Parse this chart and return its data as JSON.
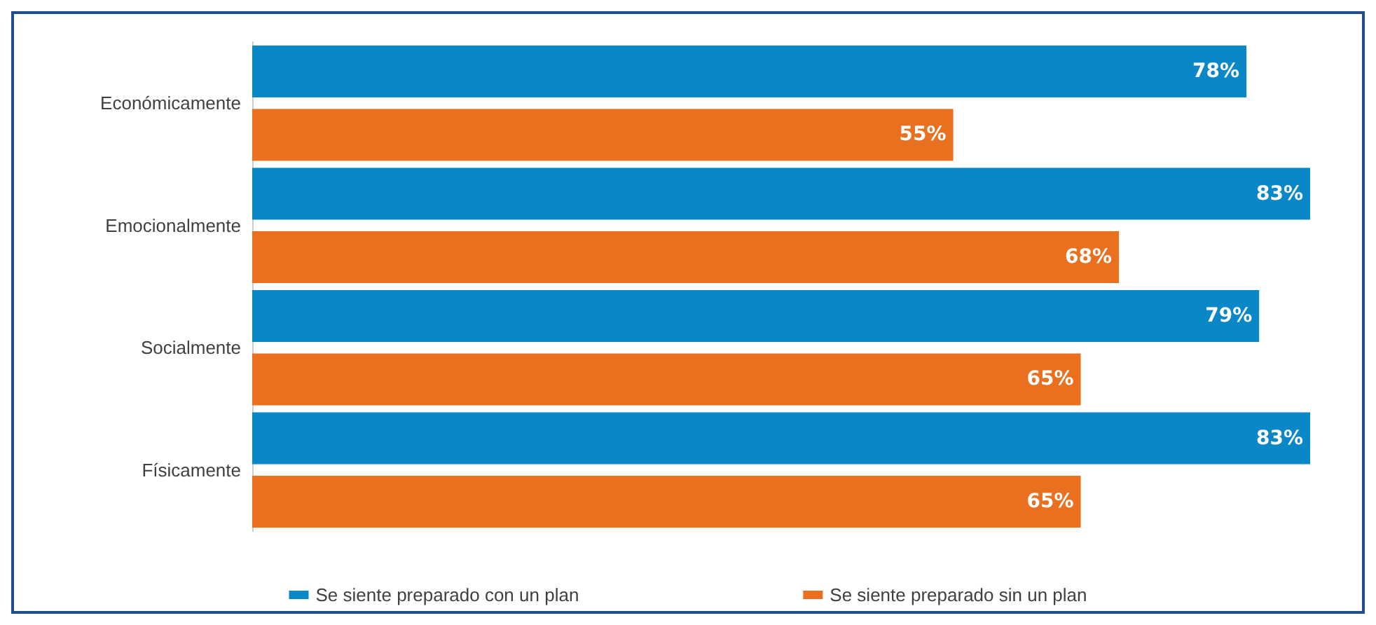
{
  "chart_data": {
    "type": "bar",
    "orientation": "horizontal",
    "categories": [
      "Económicamente",
      "Emocionalmente",
      "Socialmente",
      "Físicamente"
    ],
    "series": [
      {
        "name": "Se siente preparado con un plan",
        "color": "#0a87c6",
        "values": [
          78,
          83,
          79,
          83
        ],
        "value_labels": [
          "78%",
          "83%",
          "79%",
          "83%"
        ]
      },
      {
        "name": "Se siente preparado sin un plan",
        "color": "#e8701e",
        "values": [
          55,
          68,
          65,
          65
        ],
        "value_labels": [
          "55%",
          "68%",
          "65%",
          "65%"
        ]
      }
    ],
    "legend": "bottom",
    "grid": false,
    "tick_labels": "y"
  }
}
